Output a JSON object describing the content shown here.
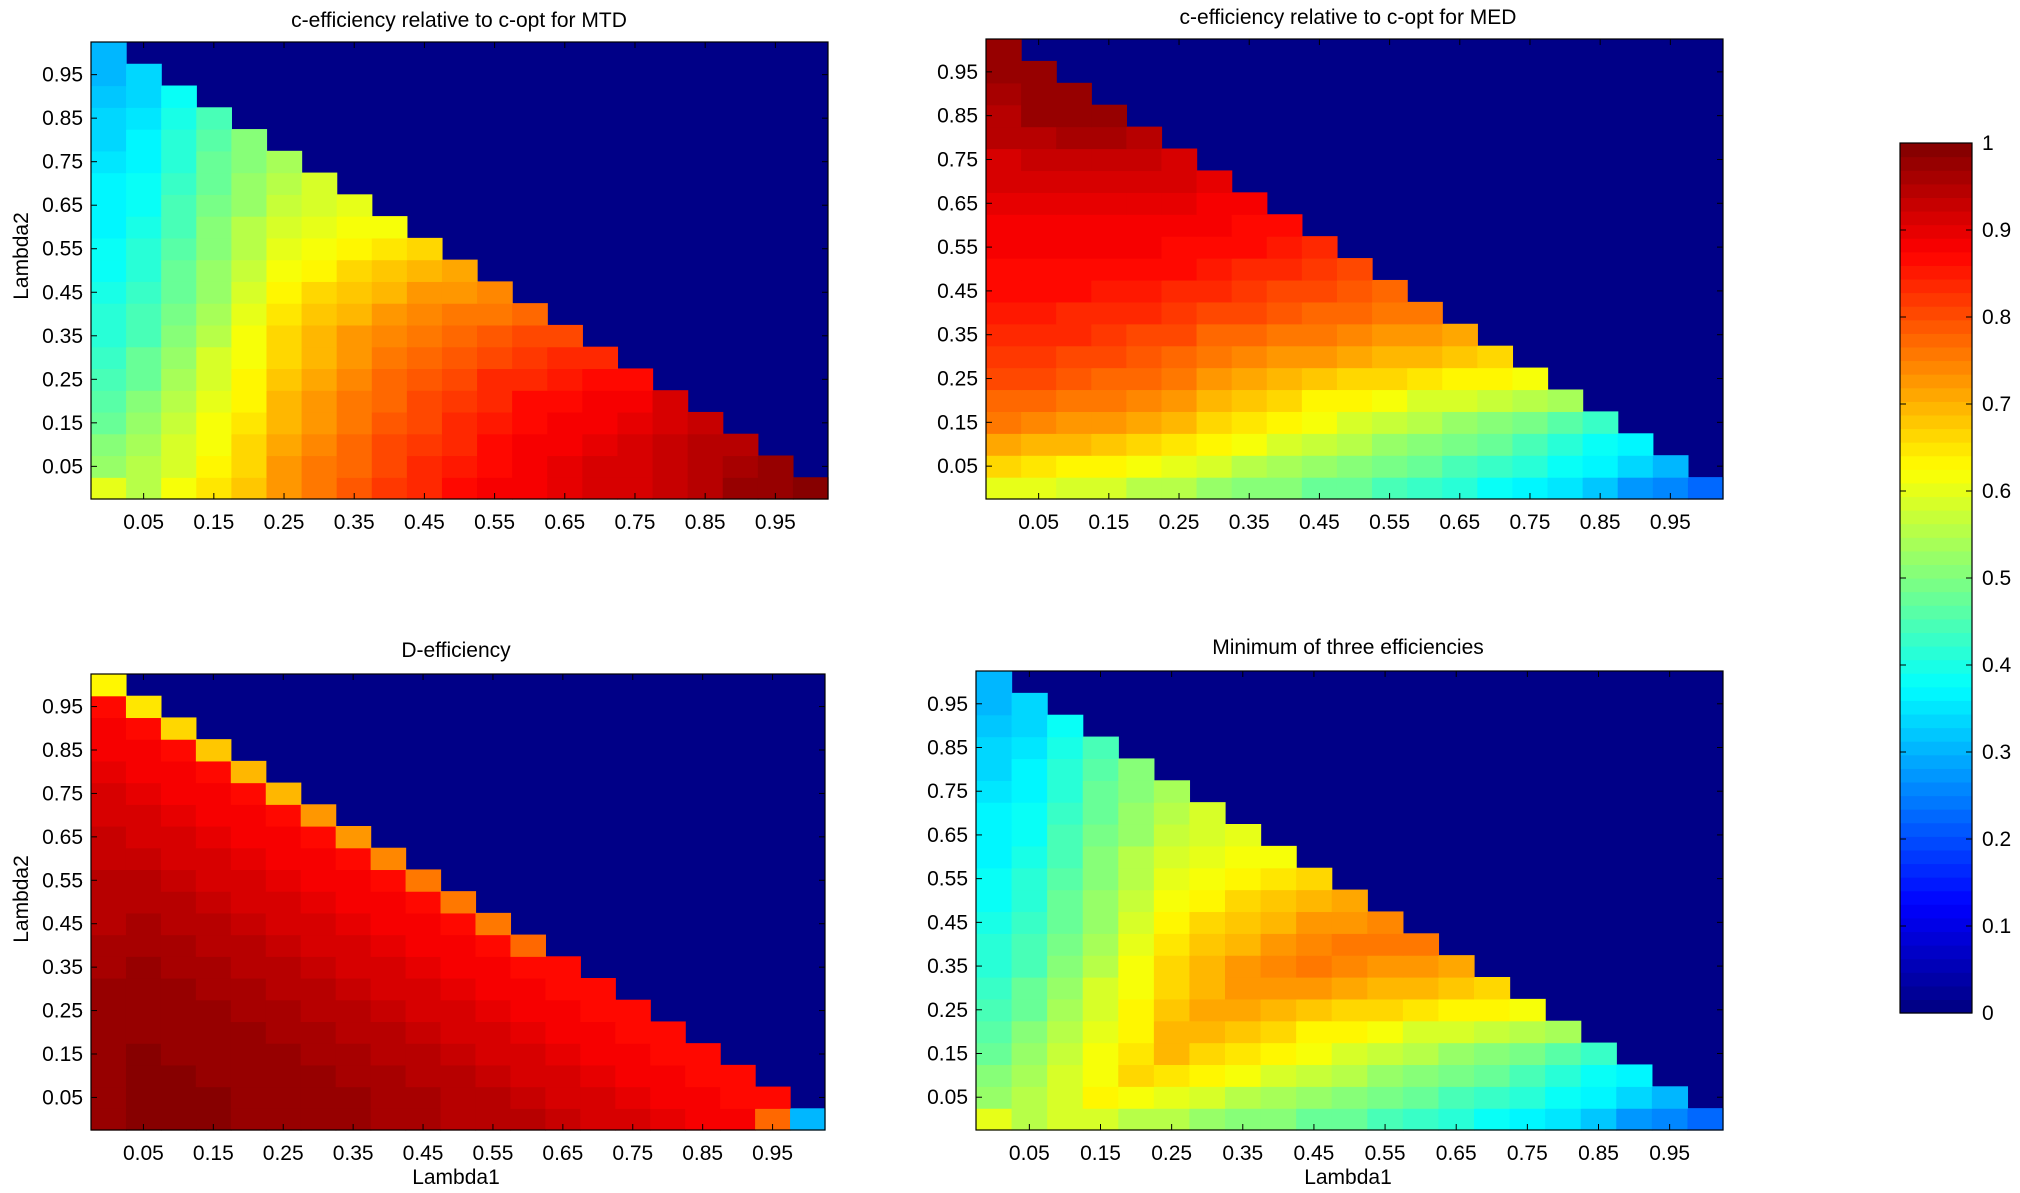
{
  "figure": {
    "colormap": "jet",
    "background": "#ffffff",
    "axes_frame_color": "#000000"
  },
  "colorbar": {
    "range": [
      0,
      1
    ],
    "ticks": [
      "0",
      "0.1",
      "0.2",
      "0.3",
      "0.4",
      "0.5",
      "0.6",
      "0.7",
      "0.8",
      "0.9",
      "1"
    ],
    "levels": 64
  },
  "chart_data": [
    {
      "type": "heatmap",
      "title": "c-efficiency relative to c-opt for MTD",
      "xlabel": "",
      "ylabel": "Lambda2",
      "x_ticklabels": [
        "0.05",
        "0.15",
        "0.25",
        "0.35",
        "0.45",
        "0.55",
        "0.65",
        "0.75",
        "0.85",
        "0.95"
      ],
      "y_ticklabels": [
        "0.95",
        "0.85",
        "0.75",
        "0.65",
        "0.55",
        "0.45",
        "0.35",
        "0.25",
        "0.15",
        "0.05"
      ],
      "grid_step": 0.05,
      "clim": [
        0,
        1
      ],
      "region": "Lambda1 + Lambda2 <= 1; value 0 elsewhere",
      "rows_bottom_to_top": [
        [
          0.6,
          0.55,
          0.61,
          0.65,
          0.68,
          0.73,
          0.76,
          0.79,
          0.82,
          0.84,
          0.86,
          0.88,
          0.89,
          0.9,
          0.91,
          0.92,
          0.93,
          0.95,
          0.97,
          0.98,
          0.99
        ],
        [
          0.53,
          0.56,
          0.59,
          0.63,
          0.67,
          0.72,
          0.75,
          0.78,
          0.81,
          0.83,
          0.85,
          0.87,
          0.89,
          0.9,
          0.91,
          0.92,
          0.93,
          0.94,
          0.96,
          0.97
        ],
        [
          0.5,
          0.54,
          0.58,
          0.62,
          0.66,
          0.71,
          0.74,
          0.77,
          0.8,
          0.82,
          0.84,
          0.86,
          0.88,
          0.89,
          0.9,
          0.91,
          0.93,
          0.94,
          0.95
        ],
        [
          0.48,
          0.52,
          0.57,
          0.61,
          0.65,
          0.7,
          0.73,
          0.76,
          0.79,
          0.81,
          0.83,
          0.85,
          0.87,
          0.88,
          0.89,
          0.9,
          0.92,
          0.93
        ],
        [
          0.46,
          0.5,
          0.55,
          0.6,
          0.64,
          0.69,
          0.72,
          0.75,
          0.78,
          0.8,
          0.82,
          0.84,
          0.86,
          0.87,
          0.88,
          0.89,
          0.91
        ],
        [
          0.44,
          0.48,
          0.54,
          0.59,
          0.63,
          0.68,
          0.71,
          0.74,
          0.77,
          0.79,
          0.81,
          0.83,
          0.84,
          0.85,
          0.86,
          0.87
        ],
        [
          0.43,
          0.47,
          0.52,
          0.58,
          0.62,
          0.67,
          0.7,
          0.73,
          0.76,
          0.78,
          0.79,
          0.81,
          0.82,
          0.83,
          0.84
        ],
        [
          0.42,
          0.45,
          0.5,
          0.56,
          0.61,
          0.66,
          0.69,
          0.72,
          0.74,
          0.76,
          0.77,
          0.79,
          0.8,
          0.81
        ],
        [
          0.41,
          0.44,
          0.49,
          0.54,
          0.6,
          0.65,
          0.68,
          0.7,
          0.72,
          0.74,
          0.75,
          0.76,
          0.78
        ],
        [
          0.4,
          0.43,
          0.48,
          0.53,
          0.58,
          0.63,
          0.66,
          0.68,
          0.7,
          0.72,
          0.73,
          0.74
        ],
        [
          0.39,
          0.42,
          0.47,
          0.52,
          0.57,
          0.61,
          0.63,
          0.66,
          0.68,
          0.7,
          0.71
        ],
        [
          0.38,
          0.41,
          0.46,
          0.51,
          0.56,
          0.6,
          0.62,
          0.63,
          0.65,
          0.66
        ],
        [
          0.37,
          0.4,
          0.45,
          0.5,
          0.55,
          0.58,
          0.6,
          0.61,
          0.62
        ],
        [
          0.37,
          0.39,
          0.44,
          0.49,
          0.53,
          0.57,
          0.59,
          0.6
        ],
        [
          0.36,
          0.38,
          0.43,
          0.48,
          0.52,
          0.56,
          0.58
        ],
        [
          0.35,
          0.37,
          0.42,
          0.47,
          0.51,
          0.54
        ],
        [
          0.34,
          0.36,
          0.41,
          0.46,
          0.5
        ],
        [
          0.33,
          0.35,
          0.4,
          0.45
        ],
        [
          0.32,
          0.34,
          0.38
        ],
        [
          0.31,
          0.33
        ],
        [
          0.3
        ]
      ]
    },
    {
      "type": "heatmap",
      "title": "c-efficiency relative to c-opt for MED",
      "xlabel": "",
      "ylabel": "",
      "x_ticklabels": [
        "0.05",
        "0.15",
        "0.25",
        "0.35",
        "0.45",
        "0.55",
        "0.65",
        "0.75",
        "0.85",
        "0.95"
      ],
      "y_ticklabels": [
        "0.95",
        "0.85",
        "0.75",
        "0.65",
        "0.55",
        "0.45",
        "0.35",
        "0.25",
        "0.15",
        "0.05"
      ],
      "grid_step": 0.05,
      "clim": [
        0,
        1
      ],
      "region": "Lambda1 + Lambda2 <= 1; value 0 elsewhere",
      "rows_bottom_to_top": [
        [
          0.6,
          0.6,
          0.59,
          0.58,
          0.56,
          0.55,
          0.53,
          0.51,
          0.5,
          0.48,
          0.47,
          0.45,
          0.43,
          0.41,
          0.39,
          0.37,
          0.35,
          0.32,
          0.28,
          0.25,
          0.22
        ],
        [
          0.66,
          0.65,
          0.64,
          0.63,
          0.62,
          0.6,
          0.58,
          0.56,
          0.54,
          0.52,
          0.51,
          0.49,
          0.47,
          0.45,
          0.43,
          0.41,
          0.38,
          0.36,
          0.33,
          0.3
        ],
        [
          0.71,
          0.7,
          0.69,
          0.68,
          0.67,
          0.65,
          0.63,
          0.61,
          0.59,
          0.57,
          0.55,
          0.53,
          0.51,
          0.49,
          0.47,
          0.45,
          0.42,
          0.39,
          0.36
        ],
        [
          0.75,
          0.74,
          0.73,
          0.72,
          0.71,
          0.69,
          0.67,
          0.65,
          0.63,
          0.61,
          0.59,
          0.57,
          0.55,
          0.53,
          0.51,
          0.49,
          0.46,
          0.43
        ],
        [
          0.78,
          0.77,
          0.76,
          0.75,
          0.74,
          0.72,
          0.7,
          0.68,
          0.66,
          0.64,
          0.63,
          0.61,
          0.59,
          0.58,
          0.57,
          0.56,
          0.54
        ],
        [
          0.8,
          0.8,
          0.79,
          0.78,
          0.77,
          0.75,
          0.73,
          0.71,
          0.69,
          0.68,
          0.67,
          0.66,
          0.65,
          0.64,
          0.63,
          0.62
        ],
        [
          0.82,
          0.82,
          0.81,
          0.8,
          0.79,
          0.78,
          0.76,
          0.74,
          0.73,
          0.72,
          0.71,
          0.7,
          0.69,
          0.68,
          0.67
        ],
        [
          0.84,
          0.83,
          0.83,
          0.82,
          0.81,
          0.8,
          0.78,
          0.77,
          0.76,
          0.75,
          0.74,
          0.73,
          0.72,
          0.71
        ],
        [
          0.85,
          0.85,
          0.84,
          0.84,
          0.83,
          0.82,
          0.81,
          0.8,
          0.79,
          0.78,
          0.77,
          0.76,
          0.75
        ],
        [
          0.86,
          0.86,
          0.86,
          0.85,
          0.85,
          0.84,
          0.83,
          0.82,
          0.81,
          0.8,
          0.79,
          0.78
        ],
        [
          0.87,
          0.87,
          0.87,
          0.87,
          0.86,
          0.86,
          0.85,
          0.84,
          0.83,
          0.82,
          0.81
        ],
        [
          0.88,
          0.88,
          0.88,
          0.88,
          0.88,
          0.87,
          0.87,
          0.86,
          0.85,
          0.84
        ],
        [
          0.89,
          0.89,
          0.89,
          0.89,
          0.89,
          0.89,
          0.88,
          0.87,
          0.87
        ],
        [
          0.9,
          0.9,
          0.9,
          0.9,
          0.9,
          0.9,
          0.89,
          0.89
        ],
        [
          0.91,
          0.91,
          0.91,
          0.91,
          0.91,
          0.91,
          0.9
        ],
        [
          0.92,
          0.93,
          0.93,
          0.93,
          0.93,
          0.92
        ],
        [
          0.94,
          0.95,
          0.96,
          0.96,
          0.95
        ],
        [
          0.95,
          0.97,
          0.98,
          0.97
        ],
        [
          0.96,
          0.98,
          0.98
        ],
        [
          0.97,
          0.98
        ],
        [
          0.98
        ]
      ]
    },
    {
      "type": "heatmap",
      "title": "D-efficiency",
      "xlabel": "Lambda1",
      "ylabel": "Lambda2",
      "x_ticklabels": [
        "0.05",
        "0.15",
        "0.25",
        "0.35",
        "0.45",
        "0.55",
        "0.65",
        "0.75",
        "0.85",
        "0.95"
      ],
      "y_ticklabels": [
        "0.95",
        "0.85",
        "0.75",
        "0.65",
        "0.55",
        "0.45",
        "0.35",
        "0.25",
        "0.15",
        "0.05"
      ],
      "grid_step": 0.05,
      "clim": [
        0,
        1
      ],
      "region": "Lambda1 + Lambda2 <= 1; value 0 elsewhere",
      "rows_bottom_to_top": [
        [
          0.98,
          0.99,
          0.99,
          0.99,
          0.98,
          0.98,
          0.97,
          0.97,
          0.96,
          0.96,
          0.95,
          0.95,
          0.94,
          0.93,
          0.92,
          0.91,
          0.9,
          0.89,
          0.88,
          0.78,
          0.3
        ],
        [
          0.98,
          0.99,
          0.99,
          0.99,
          0.98,
          0.98,
          0.97,
          0.97,
          0.96,
          0.96,
          0.95,
          0.94,
          0.93,
          0.92,
          0.91,
          0.9,
          0.89,
          0.88,
          0.87,
          0.86
        ],
        [
          0.98,
          0.99,
          0.99,
          0.98,
          0.98,
          0.97,
          0.97,
          0.96,
          0.96,
          0.95,
          0.94,
          0.93,
          0.92,
          0.91,
          0.9,
          0.89,
          0.88,
          0.87,
          0.86
        ],
        [
          0.98,
          0.99,
          0.98,
          0.98,
          0.97,
          0.97,
          0.96,
          0.96,
          0.95,
          0.94,
          0.93,
          0.92,
          0.91,
          0.9,
          0.89,
          0.88,
          0.87,
          0.86
        ],
        [
          0.98,
          0.98,
          0.98,
          0.97,
          0.97,
          0.96,
          0.96,
          0.95,
          0.94,
          0.93,
          0.92,
          0.91,
          0.9,
          0.89,
          0.88,
          0.87,
          0.86
        ],
        [
          0.97,
          0.98,
          0.97,
          0.97,
          0.96,
          0.96,
          0.95,
          0.94,
          0.93,
          0.92,
          0.91,
          0.9,
          0.89,
          0.88,
          0.87,
          0.86
        ],
        [
          0.97,
          0.97,
          0.97,
          0.96,
          0.96,
          0.95,
          0.94,
          0.93,
          0.92,
          0.91,
          0.9,
          0.89,
          0.88,
          0.87,
          0.86
        ],
        [
          0.96,
          0.97,
          0.96,
          0.96,
          0.95,
          0.94,
          0.93,
          0.92,
          0.91,
          0.9,
          0.89,
          0.88,
          0.87,
          0.86
        ],
        [
          0.96,
          0.96,
          0.96,
          0.95,
          0.94,
          0.93,
          0.92,
          0.91,
          0.9,
          0.89,
          0.88,
          0.87,
          0.78
        ],
        [
          0.95,
          0.96,
          0.95,
          0.94,
          0.93,
          0.92,
          0.91,
          0.9,
          0.89,
          0.88,
          0.87,
          0.76
        ],
        [
          0.95,
          0.95,
          0.94,
          0.93,
          0.92,
          0.91,
          0.9,
          0.89,
          0.88,
          0.87,
          0.76
        ],
        [
          0.94,
          0.94,
          0.93,
          0.92,
          0.91,
          0.9,
          0.89,
          0.88,
          0.87,
          0.75
        ],
        [
          0.93,
          0.93,
          0.92,
          0.91,
          0.9,
          0.89,
          0.88,
          0.87,
          0.74
        ],
        [
          0.93,
          0.92,
          0.91,
          0.9,
          0.89,
          0.88,
          0.87,
          0.73
        ],
        [
          0.92,
          0.91,
          0.9,
          0.89,
          0.88,
          0.87,
          0.72
        ],
        [
          0.91,
          0.9,
          0.89,
          0.88,
          0.87,
          0.7
        ],
        [
          0.9,
          0.89,
          0.88,
          0.87,
          0.69
        ],
        [
          0.89,
          0.88,
          0.87,
          0.68
        ],
        [
          0.88,
          0.87,
          0.66
        ],
        [
          0.87,
          0.65
        ],
        [
          0.63
        ]
      ]
    },
    {
      "type": "heatmap",
      "title": "Minimum of three efficiencies",
      "xlabel": "Lambda1",
      "ylabel": "",
      "x_ticklabels": [
        "0.05",
        "0.15",
        "0.25",
        "0.35",
        "0.45",
        "0.55",
        "0.65",
        "0.75",
        "0.85",
        "0.95"
      ],
      "y_ticklabels": [
        "0.95",
        "0.85",
        "0.75",
        "0.65",
        "0.55",
        "0.45",
        "0.35",
        "0.25",
        "0.15",
        "0.05"
      ],
      "grid_step": 0.05,
      "clim": [
        0,
        1
      ],
      "region": "Lambda1 + Lambda2 <= 1; value 0 elsewhere",
      "rows_bottom_to_top": [
        [
          0.6,
          0.55,
          0.59,
          0.58,
          0.56,
          0.55,
          0.53,
          0.51,
          0.5,
          0.48,
          0.47,
          0.45,
          0.43,
          0.41,
          0.39,
          0.37,
          0.35,
          0.32,
          0.28,
          0.25,
          0.22
        ],
        [
          0.53,
          0.56,
          0.59,
          0.63,
          0.62,
          0.6,
          0.58,
          0.56,
          0.54,
          0.52,
          0.51,
          0.49,
          0.47,
          0.45,
          0.43,
          0.41,
          0.38,
          0.36,
          0.33,
          0.3
        ],
        [
          0.5,
          0.54,
          0.58,
          0.62,
          0.66,
          0.65,
          0.63,
          0.61,
          0.59,
          0.57,
          0.55,
          0.53,
          0.51,
          0.49,
          0.47,
          0.45,
          0.42,
          0.39,
          0.36
        ],
        [
          0.48,
          0.52,
          0.57,
          0.61,
          0.65,
          0.69,
          0.67,
          0.65,
          0.63,
          0.61,
          0.59,
          0.57,
          0.55,
          0.53,
          0.51,
          0.49,
          0.46,
          0.43
        ],
        [
          0.46,
          0.5,
          0.55,
          0.6,
          0.64,
          0.69,
          0.7,
          0.68,
          0.66,
          0.64,
          0.63,
          0.61,
          0.59,
          0.58,
          0.57,
          0.56,
          0.54
        ],
        [
          0.44,
          0.48,
          0.54,
          0.59,
          0.63,
          0.68,
          0.71,
          0.71,
          0.69,
          0.68,
          0.67,
          0.66,
          0.65,
          0.64,
          0.63,
          0.62
        ],
        [
          0.43,
          0.47,
          0.52,
          0.58,
          0.62,
          0.67,
          0.7,
          0.73,
          0.73,
          0.72,
          0.71,
          0.7,
          0.69,
          0.68,
          0.67
        ],
        [
          0.42,
          0.45,
          0.5,
          0.56,
          0.61,
          0.66,
          0.69,
          0.72,
          0.74,
          0.75,
          0.74,
          0.73,
          0.72,
          0.71
        ],
        [
          0.41,
          0.44,
          0.49,
          0.54,
          0.6,
          0.65,
          0.68,
          0.7,
          0.72,
          0.74,
          0.75,
          0.76,
          0.75
        ],
        [
          0.4,
          0.43,
          0.48,
          0.53,
          0.58,
          0.63,
          0.66,
          0.68,
          0.7,
          0.72,
          0.73,
          0.74
        ],
        [
          0.39,
          0.42,
          0.47,
          0.52,
          0.57,
          0.61,
          0.63,
          0.66,
          0.68,
          0.7,
          0.71
        ],
        [
          0.38,
          0.41,
          0.46,
          0.51,
          0.56,
          0.6,
          0.62,
          0.63,
          0.65,
          0.66
        ],
        [
          0.37,
          0.4,
          0.45,
          0.5,
          0.55,
          0.58,
          0.6,
          0.61,
          0.62
        ],
        [
          0.37,
          0.39,
          0.44,
          0.49,
          0.53,
          0.57,
          0.59,
          0.6
        ],
        [
          0.36,
          0.38,
          0.43,
          0.48,
          0.52,
          0.56,
          0.58
        ],
        [
          0.35,
          0.37,
          0.42,
          0.47,
          0.51,
          0.54
        ],
        [
          0.34,
          0.36,
          0.41,
          0.46,
          0.5
        ],
        [
          0.33,
          0.35,
          0.4,
          0.45
        ],
        [
          0.32,
          0.34,
          0.38
        ],
        [
          0.31,
          0.33
        ],
        [
          0.3
        ]
      ]
    }
  ]
}
